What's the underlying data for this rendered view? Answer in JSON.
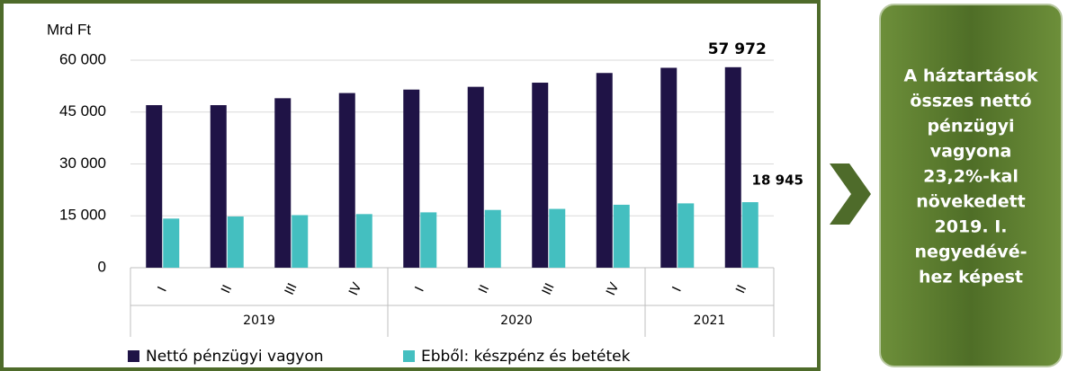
{
  "chart_data": {
    "type": "bar",
    "y_axis_label": "Mrd Ft",
    "categories": [
      "I",
      "II",
      "III",
      "IV",
      "I",
      "II",
      "III",
      "IV",
      "I",
      "II"
    ],
    "x_groups": [
      "2019",
      "2020",
      "2021"
    ],
    "x_group_sizes": [
      4,
      4,
      2
    ],
    "series": [
      {
        "name": "Nettó pénzügyi vagyon",
        "color": "#1f1346",
        "values": [
          47000,
          47000,
          49000,
          50500,
          51500,
          52300,
          53500,
          56300,
          57800,
          57972
        ],
        "value_labels": [
          null,
          null,
          null,
          null,
          null,
          null,
          null,
          null,
          null,
          "57 972"
        ]
      },
      {
        "name": "Ebből: készpénz és betétek",
        "color": "#44bfc0",
        "values": [
          14200,
          14800,
          15200,
          15500,
          16000,
          16700,
          17000,
          18200,
          18600,
          18945
        ],
        "value_labels": [
          null,
          null,
          null,
          null,
          null,
          null,
          null,
          null,
          null,
          "18 945"
        ]
      }
    ],
    "ylim": [
      0,
      60000
    ],
    "yticks": [
      0,
      {
        "value": 15000,
        "label": "15 000"
      },
      {
        "value": 30000,
        "label": "30 000"
      },
      {
        "value": 45000,
        "label": "45 000"
      },
      {
        "value": 60000,
        "label": "60 000"
      }
    ],
    "grid": true,
    "legend": "bottom"
  },
  "callout": {
    "lines": [
      "A háztartások",
      "összes nettó",
      "pénzügyi",
      "vagyona",
      "23,2%-kal",
      "növekedett",
      "2019. I.",
      "negyedévé-",
      "hez képest"
    ]
  }
}
